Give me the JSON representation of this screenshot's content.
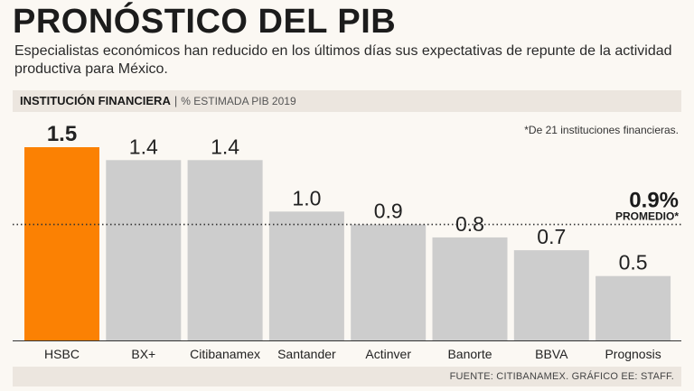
{
  "header": {
    "title": "PRONÓSTICO DEL PIB",
    "subtitle": "Especialistas económicos han reducido en los últimos días sus expectativas de repunte de la actividad productiva para México.",
    "institution_label": "INSTITUCIÓN FINANCIERA",
    "separator": "|",
    "metric_label": "% ESTIMADA PIB 2019"
  },
  "footer": {
    "source": "FUENTE: CITIBANAMEX. GRÁFICO EE: STAFF."
  },
  "chart_data": {
    "type": "bar",
    "categories": [
      "HSBC",
      "BX+",
      "Citibanamex",
      "Santander",
      "Actinver",
      "Banorte",
      "BBVA",
      "Prognosis"
    ],
    "values": [
      1.5,
      1.4,
      1.4,
      1.0,
      0.9,
      0.8,
      0.7,
      0.5
    ],
    "value_labels": [
      "1.5",
      "1.4",
      "1.4",
      "1.0",
      "0.9",
      "0.8",
      "0.7",
      "0.5"
    ],
    "highlight_index": 0,
    "ylim": [
      0,
      1.5
    ],
    "colors": {
      "bar": "#cdcdcd",
      "highlight": "#fb8103",
      "reference_line": "#333333"
    },
    "reference": {
      "value": 0.9,
      "value_label": "0.9%",
      "label": "PROMEDIO*"
    },
    "note": "*De 21 instituciones financieras."
  }
}
